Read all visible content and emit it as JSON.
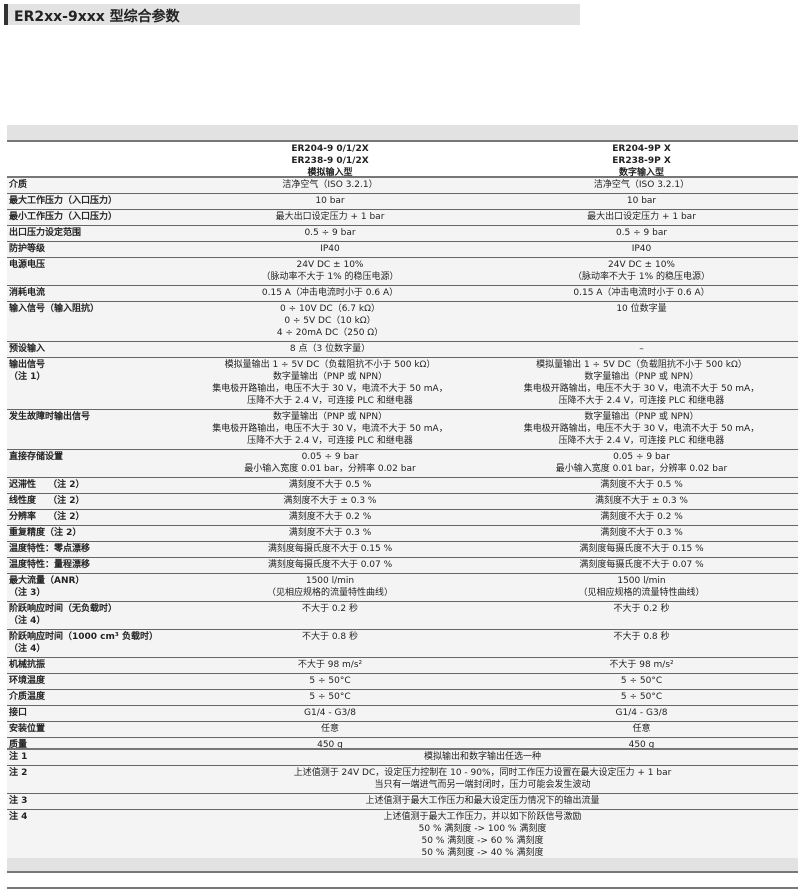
{
  "title": "ER2xx-9xxx 型综合参数",
  "header": {
    "col1": [
      "ER204-9 0/1/2X",
      "ER238-9 0/1/2X",
      "模拟输入型"
    ],
    "col2": [
      "ER204-9P X",
      "ER238-9P X",
      "数字输入型"
    ]
  },
  "rows": [
    {
      "label": [
        "介质"
      ],
      "col1": [
        "洁净空气（ISO 3.2.1）"
      ],
      "col2": [
        "洁净空气（ISO 3.2.1）"
      ]
    },
    {
      "label": [
        "最大工作压力（入口压力）"
      ],
      "col1": [
        "10 bar"
      ],
      "col2": [
        "10 bar"
      ]
    },
    {
      "label": [
        "最小工作压力（入口压力）"
      ],
      "col1": [
        "最大出口设定压力 + 1 bar"
      ],
      "col2": [
        "最大出口设定压力 + 1 bar"
      ]
    },
    {
      "label": [
        "出口压力设定范围"
      ],
      "col1": [
        "0.5 ÷ 9 bar"
      ],
      "col2": [
        "0.5 ÷ 9 bar"
      ]
    },
    {
      "label": [
        "防护等级"
      ],
      "col1": [
        "IP40"
      ],
      "col2": [
        "IP40"
      ]
    },
    {
      "label": [
        "电源电压"
      ],
      "col1": [
        "24V DC ± 10%",
        "（脉动率不大于 1% 的稳压电源）"
      ],
      "col2": [
        "24V DC ± 10%",
        "（脉动率不大于 1% 的稳压电源）"
      ]
    },
    {
      "label": [
        "消耗电流"
      ],
      "col1": [
        "0.15 A（冲击电流时小于 0.6 A）"
      ],
      "col2": [
        "0.15 A（冲击电流时小于 0.6 A）"
      ]
    },
    {
      "label": [
        "输入信号（输入阻抗）"
      ],
      "col1": [
        "0 ÷ 10V DC（6.7 kΩ）",
        "0 ÷ 5V DC（10 kΩ）",
        "4 ÷ 20mA DC（250 Ω）"
      ],
      "col2": [
        "10 位数字量"
      ]
    },
    {
      "label": [
        "预设输入"
      ],
      "col1": [
        "8 点（3 位数字量）"
      ],
      "col2": [
        "–"
      ]
    },
    {
      "label": [
        "输出信号",
        "（注 1）"
      ],
      "col1": [
        "模拟量输出 1 ÷ 5V DC（负载阻抗不小于 500 kΩ）",
        "数字量输出（PNP 或 NPN）",
        "集电极开路输出，电压不大于 30 V，电流不大于 50 mA，",
        "压降不大于 2.4 V，可连接 PLC 和继电器"
      ],
      "col2": [
        "模拟量输出 1 ÷ 5V DC（负载阻抗不小于 500 kΩ）",
        "数字量输出（PNP 或 NPN）",
        "集电极开路输出，电压不大于 30 V，电流不大于 50 mA，",
        "压降不大于 2.4 V，可连接 PLC 和继电器"
      ]
    },
    {
      "label": [
        "发生故障时输出信号"
      ],
      "col1": [
        "数字量输出（PNP 或 NPN）",
        "集电极开路输出，电压不大于 30 V，电流不大于 50 mA，",
        "压降不大于 2.4 V，可连接 PLC 和继电器"
      ],
      "col2": [
        "数字量输出（PNP 或 NPN）",
        "集电极开路输出，电压不大于 30 V，电流不大于 50 mA，",
        "压降不大于 2.4 V，可连接 PLC 和继电器"
      ]
    },
    {
      "label": [
        "直接存储设置"
      ],
      "col1": [
        "0.05 ÷ 9 bar",
        "最小输入宽度 0.01 bar，分辨率 0.02 bar"
      ],
      "col2": [
        "0.05 ÷ 9 bar",
        "最小输入宽度 0.01 bar，分辨率 0.02 bar"
      ]
    },
    {
      "label": [
        "迟滞性　 （注 2）"
      ],
      "col1": [
        "满刻度不大于 0.5 %"
      ],
      "col2": [
        "满刻度不大于 0.5 %"
      ]
    },
    {
      "label": [
        "线性度　 （注 2）"
      ],
      "col1": [
        "满刻度不大于 ± 0.3 %"
      ],
      "col2": [
        "满刻度不大于 ± 0.3 %"
      ]
    },
    {
      "label": [
        "分辨率　 （注 2）"
      ],
      "col1": [
        "满刻度不大于 0.2 %"
      ],
      "col2": [
        "满刻度不大于 0.2 %"
      ]
    },
    {
      "label": [
        "重复精度（注 2）"
      ],
      "col1": [
        "满刻度不大于 0.3 %"
      ],
      "col2": [
        "满刻度不大于 0.3 %"
      ]
    },
    {
      "label": [
        "温度特性：零点漂移"
      ],
      "col1": [
        "满刻度每摄氏度不大于 0.15 %"
      ],
      "col2": [
        "满刻度每摄氏度不大于 0.15 %"
      ]
    },
    {
      "label": [
        "温度特性：量程漂移"
      ],
      "col1": [
        "满刻度每摄氏度不大于 0.07 %"
      ],
      "col2": [
        "满刻度每摄氏度不大于 0.07 %"
      ]
    },
    {
      "label": [
        "最大流量（ANR）",
        "（注 3）"
      ],
      "col1": [
        "1500 l/min",
        "（见相应规格的流量特性曲线）"
      ],
      "col2": [
        "1500 l/min",
        "（见相应规格的流量特性曲线）"
      ]
    },
    {
      "label": [
        "阶跃响应时间（无负载时）",
        "（注 4）"
      ],
      "col1": [
        "不大于 0.2 秒"
      ],
      "col2": [
        "不大于 0.2 秒"
      ]
    },
    {
      "label": [
        "阶跃响应时间（1000 cm³ 负载时）",
        "（注 4）"
      ],
      "col1": [
        "不大于 0.8 秒"
      ],
      "col2": [
        "不大于 0.8 秒"
      ]
    },
    {
      "label": [
        "机械抗振"
      ],
      "col1": [
        "不大于 98 m/s²"
      ],
      "col2": [
        "不大于 98 m/s²"
      ]
    },
    {
      "label": [
        "环境温度"
      ],
      "col1": [
        "5 ÷ 50°C"
      ],
      "col2": [
        "5 ÷ 50°C"
      ]
    },
    {
      "label": [
        "介质温度"
      ],
      "col1": [
        "5 ÷ 50°C"
      ],
      "col2": [
        "5 ÷ 50°C"
      ]
    },
    {
      "label": [
        "接口"
      ],
      "col1": [
        "G1/4 - G3/8"
      ],
      "col2": [
        "G1/4 - G3/8"
      ]
    },
    {
      "label": [
        "安装位置"
      ],
      "col1": [
        "任意"
      ],
      "col2": [
        "任意"
      ]
    },
    {
      "label": [
        "质量"
      ],
      "col1": [
        "450 g"
      ],
      "col2": [
        "450 g"
      ]
    }
  ],
  "notes": [
    {
      "label": "注 1",
      "text": [
        "模拟输出和数字输出任选一种"
      ]
    },
    {
      "label": "注 2",
      "text": [
        "上述值测于 24V DC，设定压力控制在 10 - 90%，同时工作压力设置在最大设定压力 + 1 bar",
        "当只有一端进气而另一端封闭时，压力可能会发生波动"
      ]
    },
    {
      "label": "注 3",
      "text": [
        "上述值测于最大工作压力和最大设定压力情况下的输出流量"
      ]
    },
    {
      "label": "注 4",
      "text": [
        "上述值测于最大工作压力，并以如下阶跃信号激励",
        "50 % 满刻度 -> 100 % 满刻度",
        "50 % 满刻度 -> 60 % 满刻度",
        "50 % 满刻度 -> 40 % 满刻度"
      ]
    }
  ]
}
